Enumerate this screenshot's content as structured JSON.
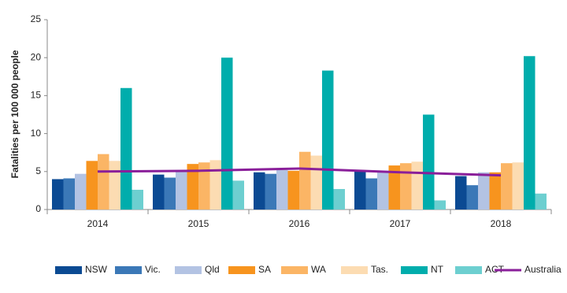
{
  "chart_data": {
    "type": "bar",
    "y_label": "Fatalities per 100 000 people",
    "categories": [
      "2014",
      "2015",
      "2016",
      "2017",
      "2018"
    ],
    "ylim": [
      0,
      25
    ],
    "yticks": [
      0,
      5,
      10,
      15,
      20,
      25
    ],
    "grid": false,
    "legend": "bottom",
    "series": [
      {
        "name": "NSW",
        "color": "#0b4a93",
        "values": [
          4.0,
          4.6,
          4.9,
          5.1,
          4.4
        ]
      },
      {
        "name": "Vic.",
        "color": "#3b78b7",
        "values": [
          4.1,
          4.2,
          4.7,
          4.1,
          3.2
        ]
      },
      {
        "name": "Qld",
        "color": "#b3c3e3",
        "values": [
          4.7,
          5.0,
          5.2,
          4.9,
          4.9
        ]
      },
      {
        "name": "SA",
        "color": "#f7941e",
        "values": [
          6.4,
          6.0,
          5.1,
          5.8,
          4.9
        ]
      },
      {
        "name": "WA",
        "color": "#fbb565",
        "values": [
          7.3,
          6.2,
          7.6,
          6.1,
          6.1
        ]
      },
      {
        "name": "Tas.",
        "color": "#fcdcb2",
        "values": [
          6.4,
          6.5,
          7.1,
          6.3,
          6.2
        ]
      },
      {
        "name": "NT",
        "color": "#00adac",
        "values": [
          16.0,
          20.0,
          18.3,
          12.5,
          20.2
        ]
      },
      {
        "name": "ACT",
        "color": "#6dcfd0",
        "values": [
          2.6,
          3.8,
          2.7,
          1.2,
          2.1
        ]
      },
      {
        "name": "Australia",
        "color": "#8a1f9a",
        "type": "line",
        "values": [
          5.0,
          5.1,
          5.4,
          4.9,
          4.5
        ]
      }
    ]
  }
}
